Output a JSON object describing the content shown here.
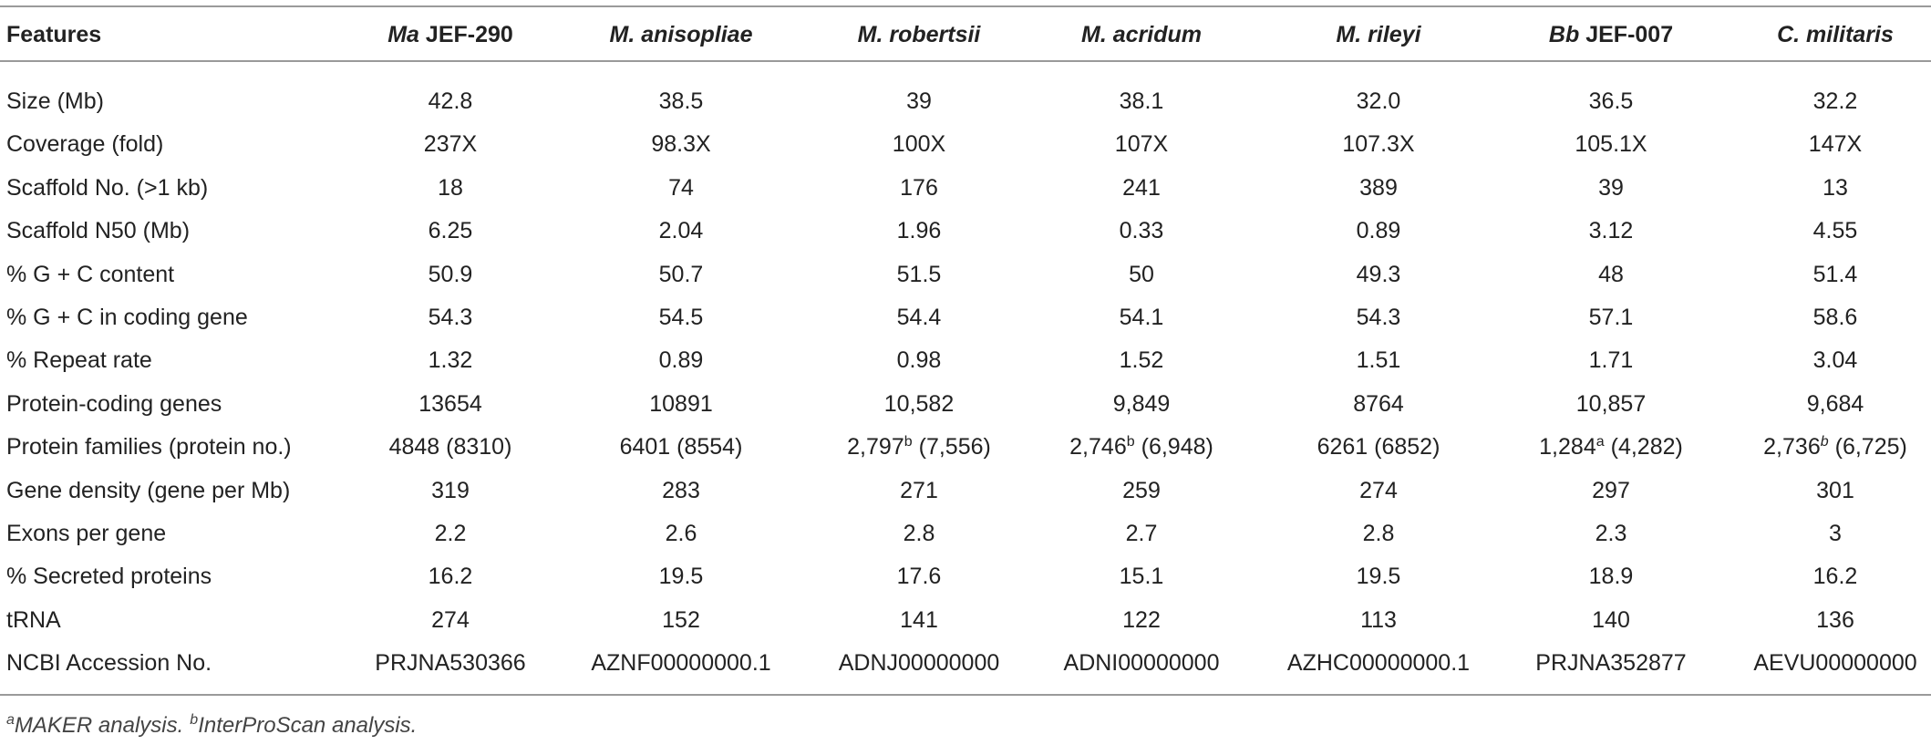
{
  "table": {
    "header": [
      "Features",
      {
        "italic": "Ma",
        "plain": "JEF-290"
      },
      {
        "italic": "M. anisopliae"
      },
      {
        "italic": "M. robertsii"
      },
      {
        "italic": "M. acridum"
      },
      {
        "italic": "M. rileyi"
      },
      {
        "italic": "Bb",
        "plain": "JEF-007"
      },
      {
        "italic": "C. militaris"
      }
    ],
    "rows": [
      [
        "Size (Mb)",
        "42.8",
        "38.5",
        "39",
        "38.1",
        "32.0",
        "36.5",
        "32.2"
      ],
      [
        "Coverage (fold)",
        "237X",
        "98.3X",
        "100X",
        "107X",
        "107.3X",
        "105.1X",
        "147X"
      ],
      [
        "Scaffold No. (>1 kb)",
        "18",
        "74",
        "176",
        "241",
        "389",
        "39",
        "13"
      ],
      [
        "Scaffold N50 (Mb)",
        "6.25",
        "2.04",
        "1.96",
        "0.33",
        "0.89",
        "3.12",
        "4.55"
      ],
      [
        "% G + C content",
        "50.9",
        "50.7",
        "51.5",
        "50",
        "49.3",
        "48",
        "51.4"
      ],
      [
        "% G + C in coding gene",
        "54.3",
        "54.5",
        "54.4",
        "54.1",
        "54.3",
        "57.1",
        "58.6"
      ],
      [
        "% Repeat rate",
        "1.32",
        "0.89",
        "0.98",
        "1.52",
        "1.51",
        "1.71",
        "3.04"
      ],
      [
        "Protein-coding genes",
        "13654",
        "10891",
        "10,582",
        "9,849",
        "8764",
        "10,857",
        "9,684"
      ],
      [
        "Protein families (protein no.)",
        "4848 (8310)",
        "6401 (8554)",
        {
          "value": "2,797",
          "sup": "b",
          "rest": "(7,556)"
        },
        {
          "value": "2,746",
          "sup": "b",
          "rest": "(6,948)"
        },
        "6261 (6852)",
        {
          "value": "1,284",
          "sup": "a",
          "rest": "(4,282)"
        },
        {
          "value": "2,736",
          "sup": "b",
          "sup_italic": true,
          "rest": "(6,725)"
        }
      ],
      [
        "Gene density (gene per Mb)",
        "319",
        "283",
        "271",
        "259",
        "274",
        "297",
        "301"
      ],
      [
        "Exons per gene",
        "2.2",
        "2.6",
        "2.8",
        "2.7",
        "2.8",
        "2.3",
        "3"
      ],
      [
        "% Secreted proteins",
        "16.2",
        "19.5",
        "17.6",
        "15.1",
        "19.5",
        "18.9",
        "16.2"
      ],
      [
        "tRNA",
        "274",
        "152",
        "141",
        "122",
        "113",
        "140",
        "136"
      ],
      [
        "NCBI Accession No.",
        "PRJNA530366",
        "AZNF00000000.1",
        "ADNJ00000000",
        "ADNI00000000",
        "AZHC00000000.1",
        "PRJNA352877",
        "AEVU00000000"
      ]
    ]
  },
  "footnotes": [
    {
      "mark": "a",
      "text": "MAKER analysis."
    },
    {
      "mark": "b",
      "text": "InterProScan analysis."
    }
  ]
}
